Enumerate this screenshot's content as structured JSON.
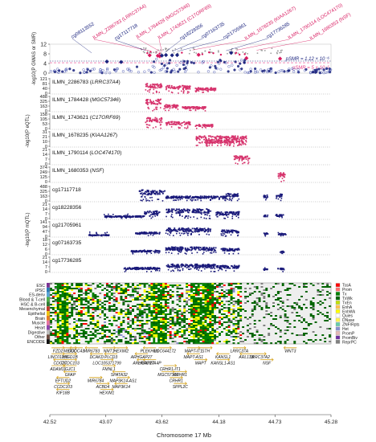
{
  "chart_data": {
    "type": "scatter",
    "title": "",
    "xlabel": "Chromosome 17 Mb",
    "xlim": [
      42.52,
      45.28
    ],
    "x_ticks": [
      "42.52",
      "43.07",
      "43.62",
      "44.18",
      "44.73",
      "45.28"
    ],
    "x_tick_values": [
      42.52,
      43.07,
      43.62,
      44.18,
      44.73,
      45.28
    ],
    "colors": {
      "gwas_filled": "#1a237e",
      "gwas_open": "#3949ab",
      "gwas_red": "#d81b60",
      "gwas_grey": "#9e9e9e",
      "eqtl": "#d6336c",
      "mqtl": "#1a1a7a",
      "dotted_line": "#999999",
      "threshold_line": "#e8438a"
    },
    "gwas_panel": {
      "ylabel": "-log10(P GWAS or SMR)",
      "ylim": [
        0,
        12
      ],
      "y_ticks": [
        0,
        4,
        8,
        12
      ],
      "pSMR_lines": [
        {
          "value": 5.0,
          "label": "pSMR = 1.12 × 10⁻⁶",
          "color": "#1a237e"
        },
        {
          "value": 4.3,
          "label": "pSMR = 5 × 10⁻⁵",
          "color": "#e8438a"
        }
      ],
      "probe_labels": [
        {
          "text": "cg08113552",
          "x": 42.93,
          "y": 8.4,
          "color": "#1a237e"
        },
        {
          "text": "ILMN_2286783 (LRRC37A4)",
          "x": 43.51,
          "y": 9.2,
          "color": "#d81b60"
        },
        {
          "text": "cg17117718",
          "x": 43.46,
          "y": 9.4,
          "color": "#1a237e"
        },
        {
          "text": "ILMN_1784428 (MGC57346)",
          "x": 43.61,
          "y": 8.8,
          "color": "#d81b60"
        },
        {
          "text": "ILMN_1743621 (C17ORF69)",
          "x": 43.62,
          "y": 8.9,
          "color": "#d81b60"
        },
        {
          "text": "cg18228356",
          "x": 43.65,
          "y": 8.6,
          "color": "#1a237e"
        },
        {
          "text": "cg07163735",
          "x": 43.72,
          "y": 9.0,
          "color": "#1a237e"
        },
        {
          "text": "cg21705961",
          "x": 43.77,
          "y": 9.0,
          "color": "#1a237e"
        },
        {
          "text": "ILMN_1678235 (KIAA1267)",
          "x": 43.92,
          "y": 9.6,
          "color": "#d81b60"
        },
        {
          "text": "cg17736285",
          "x": 44.25,
          "y": 9.3,
          "color": "#1a237e"
        },
        {
          "text": "ILMN_1790114 (LOC474170)",
          "x": 44.35,
          "y": 9.5,
          "color": "#d81b60"
        },
        {
          "text": "ILMN_1680353 (NSF)",
          "x": 44.55,
          "y": 9.5,
          "color": "#d81b60"
        }
      ],
      "smr_points": [
        {
          "x": 43.5,
          "y": 7.4,
          "type": "eqtl"
        },
        {
          "x": 43.58,
          "y": 7.2,
          "type": "eqtl"
        },
        {
          "x": 43.6,
          "y": 7.0,
          "type": "eqtl"
        },
        {
          "x": 43.62,
          "y": 7.3,
          "type": "mqtl"
        },
        {
          "x": 43.66,
          "y": 7.5,
          "type": "mqtl"
        },
        {
          "x": 43.72,
          "y": 7.4,
          "type": "mqtl"
        },
        {
          "x": 43.77,
          "y": 7.5,
          "type": "mqtl"
        },
        {
          "x": 43.98,
          "y": 7.6,
          "type": "eqtl"
        },
        {
          "x": 44.3,
          "y": 8.4,
          "type": "mqtl"
        },
        {
          "x": 44.45,
          "y": 6.2,
          "type": "eqtl"
        },
        {
          "x": 44.78,
          "y": 6.0,
          "type": "eqtl"
        },
        {
          "x": 43.08,
          "y": 4.8,
          "type": "mqtl"
        },
        {
          "x": 43.22,
          "y": 4.6,
          "type": "mqtl"
        }
      ]
    },
    "eqtl_tracks": [
      {
        "label": "ILMN_2286783",
        "gene": "LRRC37A4",
        "y_ticks": [
          "121",
          "81",
          "40",
          "0"
        ],
        "ymax": 121,
        "segments": [
          [
            43.46,
            43.62,
            0.7
          ],
          [
            43.66,
            43.9,
            0.55
          ],
          [
            43.95,
            44.15,
            0.4
          ]
        ]
      },
      {
        "label": "ILMN_1784428",
        "gene": "MGC57346",
        "y_ticks": [
          "488",
          "325",
          "163",
          "0"
        ],
        "ymax": 488,
        "segments": [
          [
            43.46,
            43.62,
            0.85
          ],
          [
            43.64,
            43.78,
            0.45
          ],
          [
            43.82,
            44.05,
            0.3
          ]
        ]
      },
      {
        "label": "ILMN_1743621",
        "gene": "C17ORF69",
        "y_ticks": [
          "158",
          "105",
          "53",
          "0"
        ],
        "ymax": 158,
        "segments": [
          [
            43.46,
            43.62,
            0.8
          ],
          [
            43.66,
            43.9,
            0.5
          ],
          [
            43.95,
            44.12,
            0.3
          ]
        ]
      },
      {
        "label": "ILMN_1678235",
        "gene": "KIAA1267",
        "y_ticks": [
          "31",
          "21",
          "10",
          "0"
        ],
        "ymax": 31,
        "segments": [
          [
            43.95,
            44.45,
            0.75
          ],
          [
            44.05,
            44.42,
            0.45
          ]
        ]
      },
      {
        "label": "ILMN_1790114",
        "gene": "LOC474170",
        "y_ticks": [
          "21",
          "14",
          "7",
          "0"
        ],
        "ymax": 21,
        "segments": [
          [
            44.33,
            44.48,
            0.6
          ]
        ]
      },
      {
        "label": "ILMN_1680353",
        "gene": "NSF",
        "y_ticks": [
          "374",
          "249",
          "125",
          "0"
        ],
        "ymax": 374,
        "segments": [
          [
            44.76,
            44.84,
            0.65
          ]
        ]
      }
    ],
    "mqtl_tracks": [
      {
        "label": "cg17117718",
        "y_ticks": [
          "488",
          "325",
          "163",
          "0"
        ],
        "ymax": 488,
        "segments": [
          [
            43.4,
            43.66,
            0.8
          ],
          [
            43.66,
            44.25,
            0.35
          ],
          [
            44.25,
            44.38,
            0.55
          ],
          [
            44.62,
            44.66,
            0.45
          ],
          [
            44.74,
            44.8,
            0.5
          ]
        ]
      },
      {
        "label": "cg18228356",
        "y_ticks": [
          "21",
          "14",
          "7",
          "0"
        ],
        "ymax": 21,
        "segments": [
          [
            43.05,
            43.45,
            0.2
          ],
          [
            43.45,
            43.6,
            0.55
          ],
          [
            43.66,
            44.1,
            0.7
          ],
          [
            44.15,
            44.38,
            0.5
          ],
          [
            44.62,
            44.66,
            0.25
          ],
          [
            44.74,
            44.82,
            0.3
          ]
        ]
      },
      {
        "label": "cg21705961",
        "y_ticks": [
          "141",
          "94",
          "47",
          "0"
        ],
        "ymax": 141,
        "segments": [
          [
            42.9,
            43.1,
            0.1
          ],
          [
            43.36,
            43.6,
            0.3
          ],
          [
            43.66,
            44.1,
            0.6
          ],
          [
            44.2,
            44.38,
            0.45
          ],
          [
            44.62,
            44.66,
            0.25
          ],
          [
            44.76,
            44.84,
            0.2
          ]
        ]
      },
      {
        "label": "cg07163735",
        "y_ticks": [
          "18",
          "12",
          "6",
          "0"
        ],
        "ymax": 18,
        "segments": [
          [
            43.32,
            43.6,
            0.25
          ],
          [
            43.66,
            44.15,
            0.5
          ],
          [
            44.2,
            44.38,
            0.4
          ],
          [
            44.78,
            44.82,
            0.2
          ]
        ]
      },
      {
        "label": "cg17736285",
        "y_ticks": [
          "21",
          "14",
          "7",
          "0"
        ],
        "ymax": 21,
        "segments": [
          [
            43.25,
            43.6,
            0.3
          ],
          [
            43.66,
            44.15,
            0.55
          ],
          [
            44.15,
            44.38,
            0.45
          ],
          [
            44.62,
            44.66,
            0.2
          ],
          [
            44.76,
            44.82,
            0.25
          ]
        ]
      }
    ],
    "eqtl_ylabel": "-log10(P eQTL)",
    "mqtl_ylabel": "-log10(P mQTL)",
    "epigenome_groups": [
      {
        "label": "ESC",
        "color": "#7b3294"
      },
      {
        "label": "iPSC",
        "color": "#2c7bb6"
      },
      {
        "label": "ES-deriv",
        "color": "#5aa5d6"
      },
      {
        "label": "Blood & T-cell",
        "color": "#4daf4a"
      },
      {
        "label": "HSC & B-cell",
        "color": "#2e7d32"
      },
      {
        "label": "Mesenchymal",
        "color": "#c0392b"
      },
      {
        "label": "Epithelial",
        "color": "#f1c40f"
      },
      {
        "label": "Brain",
        "color": "#e67e22"
      },
      {
        "label": "Muscle",
        "color": "#e6739f"
      },
      {
        "label": "Heart",
        "color": "#8e44ad"
      },
      {
        "label": "Digestive",
        "color": "#bdbdbd"
      },
      {
        "label": "Other",
        "color": "#6d4c41"
      },
      {
        "label": "ENCODE",
        "color": "#111111"
      }
    ],
    "chromatin_states": [
      {
        "label": "TssA",
        "color": "#ff0000"
      },
      {
        "label": "Prom",
        "color": "#ff6e6e"
      },
      {
        "label": "Tx",
        "color": "#008000"
      },
      {
        "label": "TxWk",
        "color": "#006400"
      },
      {
        "label": "TxEn",
        "color": "#c2e105"
      },
      {
        "label": "EnhA",
        "color": "#ffc34d"
      },
      {
        "label": "EnhWk",
        "color": "#ffff00"
      },
      {
        "label": "Quies",
        "color": "#ffffff"
      },
      {
        "label": "DNase",
        "color": "#fff44f"
      },
      {
        "label": "ZNF/Rpts",
        "color": "#66cdaa"
      },
      {
        "label": "Het",
        "color": "#8a91d0"
      },
      {
        "label": "PromP",
        "color": "#e6b8b7"
      },
      {
        "label": "PromBiv",
        "color": "#7030a0"
      },
      {
        "label": "ReprPC",
        "color": "#808080"
      }
    ],
    "genes": [
      {
        "name": "FZD2",
        "x": 42.6,
        "y": 0,
        "strand": "+"
      },
      {
        "name": "MEIOC",
        "x": 42.72,
        "y": 0,
        "strand": "+"
      },
      {
        "name": "CCDC43",
        "x": 42.78,
        "y": 0,
        "strand": "-"
      },
      {
        "name": "MIR6783",
        "x": 42.93,
        "y": 0,
        "strand": "-"
      },
      {
        "name": "NMT1",
        "x": 43.1,
        "y": 0,
        "strand": "+"
      },
      {
        "name": "HEXIM2",
        "x": 43.22,
        "y": 0,
        "strand": "+"
      },
      {
        "name": "PLEKHM1",
        "x": 43.5,
        "y": 0,
        "strand": "-"
      },
      {
        "name": "LOC644172",
        "x": 43.65,
        "y": 0,
        "strand": "+"
      },
      {
        "name": "MAPT-IT1",
        "x": 43.93,
        "y": 0,
        "strand": "+"
      },
      {
        "name": "STH",
        "x": 44.05,
        "y": 0,
        "strand": "+"
      },
      {
        "name": "LRRC37A",
        "x": 44.38,
        "y": 0,
        "strand": "+"
      },
      {
        "name": "WNT3",
        "x": 44.88,
        "y": 0,
        "strand": "-"
      },
      {
        "name": "LINC01180",
        "x": 42.6,
        "y": 1,
        "strand": "+"
      },
      {
        "name": "HIGD1B",
        "x": 42.72,
        "y": 1,
        "strand": "+"
      },
      {
        "name": "DCAKD",
        "x": 42.98,
        "y": 1,
        "strand": "-"
      },
      {
        "name": "PLCD3",
        "x": 43.12,
        "y": 1,
        "strand": "-"
      },
      {
        "name": "ARHGAP27",
        "x": 43.42,
        "y": 1,
        "strand": "-"
      },
      {
        "name": "MAPT-AS1",
        "x": 43.93,
        "y": 1,
        "strand": "-"
      },
      {
        "name": "KANSL1",
        "x": 44.22,
        "y": 1,
        "strand": "-"
      },
      {
        "name": "ARL17B",
        "x": 44.45,
        "y": 1,
        "strand": "-"
      },
      {
        "name": "LRRC37A2",
        "x": 44.58,
        "y": 1,
        "strand": "+"
      },
      {
        "name": "CDC27",
        "x": 42.62,
        "y": 2,
        "strand": "-"
      },
      {
        "name": "CCDC103",
        "x": 42.72,
        "y": 2,
        "strand": "+"
      },
      {
        "name": "LOC105371799",
        "x": 43.08,
        "y": 2,
        "strand": "+"
      },
      {
        "name": "ARHGAP27",
        "x": 43.44,
        "y": 2,
        "strand": "-"
      },
      {
        "name": "LRRC37A4P",
        "x": 43.5,
        "y": 2,
        "strand": "-"
      },
      {
        "name": "MAPT",
        "x": 44.0,
        "y": 2,
        "strand": "+"
      },
      {
        "name": "KANSL1-AS1",
        "x": 44.22,
        "y": 2,
        "strand": "+"
      },
      {
        "name": "NSF",
        "x": 44.65,
        "y": 2,
        "strand": "+"
      },
      {
        "name": "ADAM11",
        "x": 42.6,
        "y": 3,
        "strand": "+"
      },
      {
        "name": "GJC1",
        "x": 42.72,
        "y": 3,
        "strand": "-"
      },
      {
        "name": "FMNL1",
        "x": 43.1,
        "y": 3,
        "strand": "+"
      },
      {
        "name": "CRHR1-IT1",
        "x": 43.7,
        "y": 3,
        "strand": "+"
      },
      {
        "name": "GFAP",
        "x": 42.72,
        "y": 4,
        "strand": "-"
      },
      {
        "name": "SPATA32",
        "x": 43.2,
        "y": 4,
        "strand": "-"
      },
      {
        "name": "MGC57346",
        "x": 43.68,
        "y": 4,
        "strand": "+"
      },
      {
        "name": "CRHR1",
        "x": 43.8,
        "y": 4,
        "strand": "+"
      },
      {
        "name": "EFTUD2",
        "x": 42.65,
        "y": 5,
        "strand": "-"
      },
      {
        "name": "MIR6784",
        "x": 42.97,
        "y": 5,
        "strand": "+"
      },
      {
        "name": "MAP3K14-AS1",
        "x": 43.24,
        "y": 5,
        "strand": "+"
      },
      {
        "name": "CRHR1",
        "x": 43.76,
        "y": 5,
        "strand": "+"
      },
      {
        "name": "CCDC103",
        "x": 42.65,
        "y": 6,
        "strand": "+"
      },
      {
        "name": "ACBD4",
        "x": 43.04,
        "y": 6,
        "strand": "+"
      },
      {
        "name": "MAP3K14",
        "x": 43.22,
        "y": 6,
        "strand": "-"
      },
      {
        "name": "SPPL2C",
        "x": 43.8,
        "y": 6,
        "strand": "+"
      },
      {
        "name": "KIF18B",
        "x": 42.65,
        "y": 7,
        "strand": "-"
      },
      {
        "name": "HEXIM1",
        "x": 43.08,
        "y": 7,
        "strand": "+"
      }
    ]
  }
}
